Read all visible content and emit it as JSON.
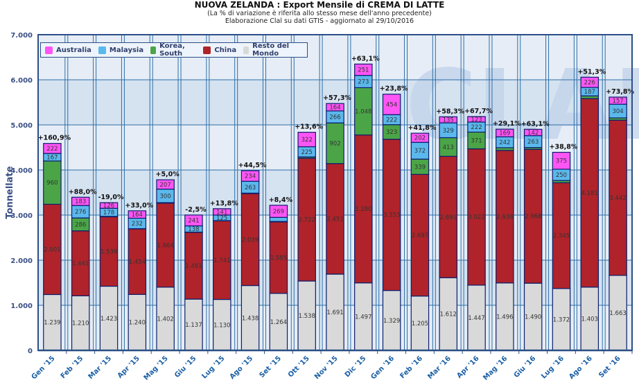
{
  "chart_data": {
    "type": "bar",
    "stacked": true,
    "title": "NUOVA ZELANDA : Export Mensile di CREMA DI LATTE",
    "subtitle_1": "(La % di variazione è riferita allo stesso mese dell'anno precedente)",
    "subtitle_2": "Elaborazione Clal su dati GTIS - aggiornato al 29/10/2016",
    "xlabel": "",
    "ylabel": "Tonnellate",
    "ylim": [
      0,
      7000
    ],
    "yticks": [
      0,
      1000,
      2000,
      3000,
      4000,
      5000,
      6000,
      7000
    ],
    "ytick_labels": [
      "0",
      "1.000",
      "2.000",
      "3.000",
      "4.000",
      "5.000",
      "6.000",
      "7.000"
    ],
    "grid": true,
    "legend_position": "top-left",
    "categories": [
      "Gen '15",
      "Feb '15",
      "Mar '15",
      "Apr '15",
      "Mag '15",
      "Giu '15",
      "Lug '15",
      "Ago '15",
      "Set '15",
      "Ott '15",
      "Nov '15",
      "Dic '15",
      "Gen '16",
      "Feb '16",
      "Mar '16",
      "Apr '16",
      "Mag '16",
      "Giu '16",
      "Lug '16",
      "Ago '16",
      "Set '16"
    ],
    "series": [
      {
        "name": "Resto del Mondo",
        "color": "#d9d9d9",
        "values": [
          1239,
          1210,
          1423,
          1240,
          1402,
          1137,
          1130,
          1438,
          1264,
          1538,
          1691,
          1497,
          1329,
          1205,
          1612,
          1447,
          1496,
          1490,
          1372,
          1403,
          1663
        ],
        "labels": [
          "1.239",
          "1.210",
          "1.423",
          "1.240",
          "1.402",
          "1.137",
          "1.130",
          "1.438",
          "1.264",
          "1.538",
          "1.691",
          "1.497",
          "1.329",
          "1.205",
          "1.612",
          "1.447",
          "1.496",
          "1.490",
          "1.372",
          "1.403",
          "1.663"
        ]
      },
      {
        "name": "China",
        "color": "#b0232a",
        "values": [
          2001,
          1441,
          1539,
          1454,
          1864,
          1481,
          1741,
          2039,
          1585,
          2722,
          2451,
          3280,
          3353,
          2697,
          2691,
          3022,
          2938,
          2968,
          2345,
          4181,
          3442
        ],
        "labels": [
          "2.001",
          "1.441",
          "1.539",
          "1.454",
          "1.864",
          "1.481",
          "1.741",
          "2.039",
          "1.585",
          "2.722",
          "2.451",
          "3.280",
          "3.353",
          "2.697",
          "2.691",
          "3.022",
          "2.938",
          "2.968",
          "2.345",
          "4.181",
          "3.442"
        ]
      },
      {
        "name": "Korea, South",
        "color": "#4ba547",
        "values": [
          960,
          286,
          10,
          5,
          10,
          5,
          5,
          10,
          10,
          30,
          902,
          1048,
          323,
          339,
          413,
          371,
          60,
          40,
          50,
          60,
          50
        ],
        "labels": [
          "960",
          "286",
          "",
          "",
          "",
          "",
          "",
          "",
          "",
          "",
          "902",
          "1.048",
          "323",
          "339",
          "413",
          "371",
          "",
          "",
          "",
          "",
          ""
        ]
      },
      {
        "name": "Malaysia",
        "color": "#5bb8ec",
        "values": [
          167,
          276,
          178,
          232,
          300,
          138,
          125,
          263,
          90,
          225,
          266,
          273,
          222,
          372,
          329,
          222,
          242,
          263,
          250,
          187,
          304
        ],
        "labels": [
          "167",
          "276",
          "178",
          "232",
          "300",
          "138",
          "125",
          "263",
          "",
          "225",
          "266",
          "273",
          "222",
          "372",
          "329",
          "222",
          "242",
          "263",
          "250",
          "187",
          "304"
        ]
      },
      {
        "name": "Australia",
        "color": "#ff55f5",
        "values": [
          222,
          183,
          126,
          164,
          207,
          241,
          141,
          234,
          269,
          322,
          164,
          251,
          454,
          202,
          135,
          123,
          169,
          142,
          375,
          226,
          157
        ],
        "labels": [
          "222",
          "183",
          "126",
          "164",
          "207",
          "241",
          "141",
          "234",
          "269",
          "322",
          "164",
          "251",
          "454",
          "202",
          "135",
          "123",
          "169",
          "142",
          "375",
          "226",
          "157"
        ]
      }
    ],
    "annotations": [
      "+160,9%",
      "+88,0%",
      "-19,0%",
      "+33,0%",
      "+5,0%",
      "-2,5%",
      "+13,8%",
      "+44,5%",
      "+8,4%",
      "+13,6%",
      "+57,3%",
      "+63,1%",
      "+23,8%",
      "+41,8%",
      "+58,3%",
      "+67,7%",
      "+29,1%",
      "+63,1%",
      "+38,8%",
      "+51,3%",
      "+73,8%"
    ],
    "legend": [
      {
        "name": "Australia",
        "color": "#ff55f5"
      },
      {
        "name": "Malaysia",
        "color": "#5bb8ec"
      },
      {
        "name": "Korea, South",
        "color": "#4ba547"
      },
      {
        "name": "China",
        "color": "#b0232a"
      },
      {
        "name": "Resto del Mondo",
        "color": "#d9d9d9"
      }
    ],
    "watermark": "CLAL"
  }
}
